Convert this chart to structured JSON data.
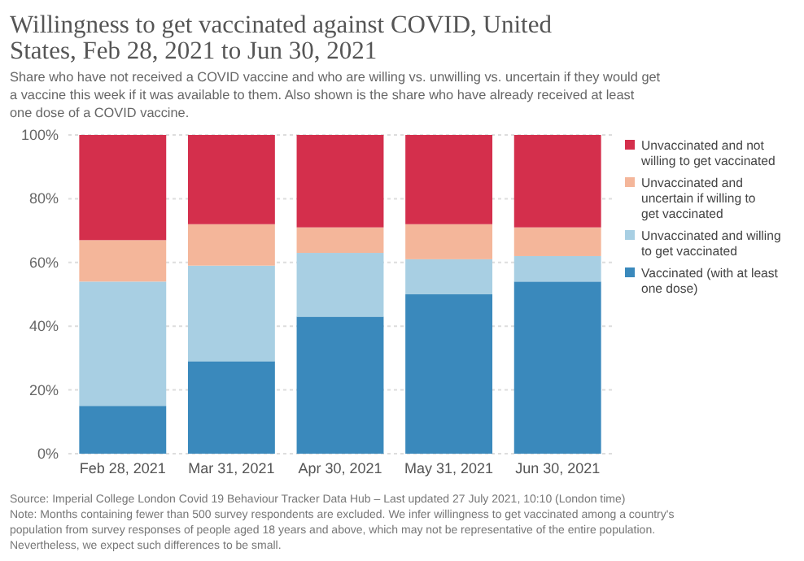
{
  "chart_data": {
    "type": "bar",
    "stacked": true,
    "title": "Willingness to get vaccinated against COVID, United States, Feb 28, 2021 to Jun 30, 2021",
    "subtitle": "Share who have not received a COVID vaccine and who are willing vs. unwilling vs. uncertain if they would get a vaccine this week if it was available to them. Also shown is the share who have already received at least one dose of a COVID vaccine.",
    "categories": [
      "Feb 28, 2021",
      "Mar 31, 2021",
      "Apr 30, 2021",
      "May 31, 2021",
      "Jun 30, 2021"
    ],
    "series": [
      {
        "name": "Vaccinated (with at least one dose)",
        "color": "#3a89bc",
        "values": [
          15,
          29,
          43,
          50,
          54
        ]
      },
      {
        "name": "Unvaccinated and willing to get vaccinated",
        "color": "#a8cfe3",
        "values": [
          39,
          30,
          20,
          11,
          8
        ]
      },
      {
        "name": "Unvaccinated and uncertain if willing to get vaccinated",
        "color": "#f4b69a",
        "values": [
          13,
          13,
          8,
          11,
          9
        ]
      },
      {
        "name": "Unvaccinated and not willing to get vaccinated",
        "color": "#d42f4c",
        "values": [
          33,
          28,
          29,
          28,
          29
        ]
      }
    ],
    "ylim": [
      0,
      100
    ],
    "yticks": [
      {
        "value": 0,
        "label": "0%"
      },
      {
        "value": 20,
        "label": "20%"
      },
      {
        "value": 40,
        "label": "40%"
      },
      {
        "value": 60,
        "label": "60%"
      },
      {
        "value": 80,
        "label": "80%"
      },
      {
        "value": 100,
        "label": "100%"
      }
    ],
    "grid": "y",
    "legend": "right",
    "annotations": [
      "Source: Imperial College London Covid 19 Behaviour Tracker Data Hub – Last updated 27 July 2021, 10:10 (London time)",
      "Note: Months containing fewer than 500 survey respondents are excluded. We infer willingness to get vaccinated among a country's population from survey responses of people aged 18 years and above, which may not be representative of the entire population. Nevertheless, we expect such differences to be small."
    ]
  }
}
